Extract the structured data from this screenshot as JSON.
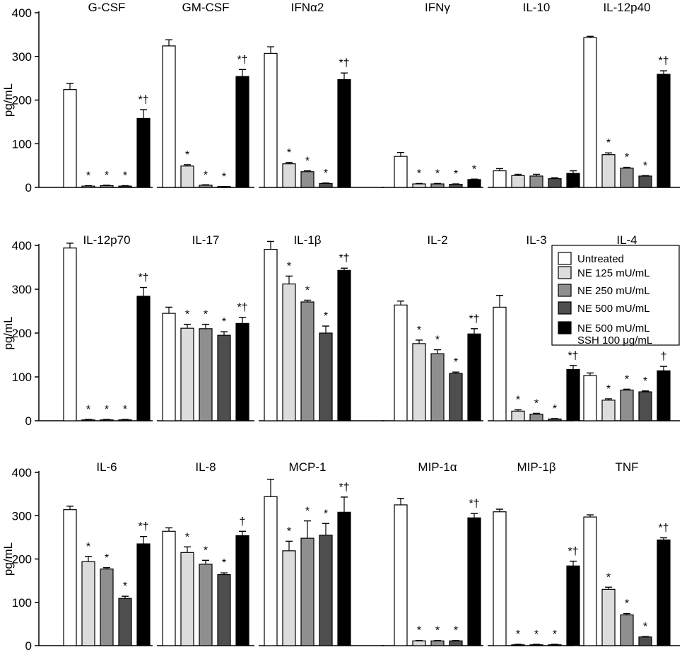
{
  "chart_data": {
    "type": "bar",
    "ylabel": "pg/mL",
    "ylim": [
      0,
      400
    ],
    "yticks": [
      0,
      100,
      200,
      300,
      400
    ],
    "legend": {
      "placement": "middle-right",
      "entries": [
        {
          "label": "Untreated"
        },
        {
          "label": "NE 125 mU/mL"
        },
        {
          "label": "NE 250 mU/mL"
        },
        {
          "label": "NE 500 mU/mL"
        },
        {
          "label": "NE 500 mU/mL",
          "label2": "SSH 100 μg/mL"
        }
      ]
    },
    "series_colors": [
      "#ffffff",
      "#dcdcdc",
      "#8f8f8f",
      "#4e4e4e",
      "#000000"
    ],
    "rows": [
      {
        "panels": [
          {
            "title": "G-CSF",
            "values": [
              224,
              3,
              4,
              3,
              158
            ],
            "errors": [
              14,
              1,
              1,
              1,
              20
            ],
            "marks": [
              "",
              "*",
              "*",
              "*",
              "*†"
            ]
          },
          {
            "title": "GM-CSF",
            "values": [
              324,
              49,
              5,
              1,
              254
            ],
            "errors": [
              14,
              3,
              1,
              1,
              16
            ],
            "marks": [
              "",
              "*",
              "*",
              "*",
              "*†"
            ]
          },
          {
            "title": "IFNα2",
            "values": [
              307,
              54,
              36,
              9,
              247
            ],
            "errors": [
              15,
              3,
              2,
              1,
              15
            ],
            "marks": [
              "",
              "*",
              "*",
              "*",
              "*†"
            ]
          },
          {
            "title": "IFNγ",
            "values": [
              71,
              8,
              8,
              7,
              18
            ],
            "errors": [
              9,
              1,
              1,
              1,
              1
            ],
            "marks": [
              "",
              "*",
              "*",
              "*",
              "*"
            ]
          },
          {
            "title": "IL-10",
            "values": [
              38,
              27,
              26,
              20,
              32
            ],
            "errors": [
              5,
              3,
              4,
              2,
              6
            ],
            "marks": [
              "",
              "",
              "",
              "",
              ""
            ]
          },
          {
            "title": "IL-12p40",
            "values": [
              343,
              75,
              44,
              26,
              259
            ],
            "errors": [
              3,
              4,
              2,
              1,
              8
            ],
            "marks": [
              "",
              "*",
              "*",
              "*",
              "*†"
            ]
          }
        ]
      },
      {
        "panels": [
          {
            "title": "IL-12p70",
            "values": [
              394,
              2,
              2,
              2,
              284
            ],
            "errors": [
              11,
              1,
              1,
              1,
              20
            ],
            "marks": [
              "",
              "*",
              "*",
              "*",
              "*†"
            ]
          },
          {
            "title": "IL-17",
            "values": [
              245,
              211,
              210,
              195,
              222
            ],
            "errors": [
              14,
              9,
              10,
              8,
              14
            ],
            "marks": [
              "",
              "*",
              "*",
              "*",
              "*†"
            ]
          },
          {
            "title": "IL-1β",
            "values": [
              391,
              312,
              271,
              200,
              343
            ],
            "errors": [
              18,
              18,
              4,
              16,
              5
            ],
            "marks": [
              "",
              "*",
              "*",
              "*",
              "*†"
            ]
          },
          {
            "title": "IL-2",
            "values": [
              264,
              176,
              153,
              108,
              198
            ],
            "errors": [
              9,
              8,
              9,
              3,
              12
            ],
            "marks": [
              "",
              "*",
              "*",
              "*",
              "*†"
            ]
          },
          {
            "title": "IL-3",
            "values": [
              259,
              22,
              15,
              4,
              117
            ],
            "errors": [
              27,
              3,
              2,
              1,
              9
            ],
            "marks": [
              "",
              "*",
              "*",
              "*",
              "*†"
            ]
          },
          {
            "title": "IL-4",
            "values": [
              103,
              47,
              70,
              66,
              114
            ],
            "errors": [
              6,
              3,
              2,
              2,
              10
            ],
            "marks": [
              "",
              "*",
              "*",
              "*",
              "†"
            ]
          }
        ]
      },
      {
        "panels": [
          {
            "title": "IL-6",
            "values": [
              314,
              194,
              177,
              109,
              235
            ],
            "errors": [
              8,
              12,
              3,
              5,
              17
            ],
            "marks": [
              "",
              "*",
              "*",
              "*",
              "*†"
            ]
          },
          {
            "title": "IL-8",
            "values": [
              264,
              215,
              188,
              164,
              254
            ],
            "errors": [
              8,
              13,
              9,
              4,
              10
            ],
            "marks": [
              "",
              "*",
              "*",
              "*",
              "†"
            ]
          },
          {
            "title": "MCP-1",
            "values": [
              344,
              219,
              248,
              255,
              308
            ],
            "errors": [
              40,
              22,
              40,
              27,
              35
            ],
            "marks": [
              "",
              "*",
              "*",
              "*",
              "*†"
            ]
          },
          {
            "title": "MIP-1α",
            "values": [
              325,
              11,
              11,
              11,
              295
            ],
            "errors": [
              15,
              1,
              1,
              1,
              10
            ],
            "marks": [
              "",
              "*",
              "*",
              "*",
              "*†"
            ]
          },
          {
            "title": "MIP-1β",
            "values": [
              309,
              2,
              2,
              2,
              184
            ],
            "errors": [
              6,
              1,
              1,
              1,
              11
            ],
            "marks": [
              "",
              "*",
              "*",
              "*",
              "*†"
            ]
          },
          {
            "title": "TNF",
            "values": [
              297,
              130,
              71,
              20,
              244
            ],
            "errors": [
              5,
              5,
              3,
              1,
              5
            ],
            "marks": [
              "",
              "*",
              "*",
              "*",
              "*†"
            ]
          }
        ]
      }
    ]
  }
}
